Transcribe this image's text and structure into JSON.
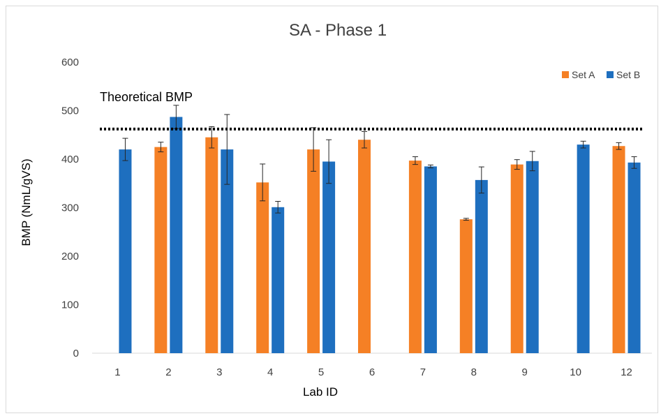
{
  "chart_data": {
    "type": "bar",
    "title": "SA - Phase 1",
    "xlabel": "Lab ID",
    "ylabel": "BMP (NmL/gVS)",
    "ylim": [
      0,
      600
    ],
    "yticks": [
      0,
      100,
      200,
      300,
      400,
      500,
      600
    ],
    "grid": false,
    "legend_position": "top-right",
    "categories": [
      "1",
      "2",
      "3",
      "4",
      "5",
      "6",
      "7",
      "8",
      "9",
      "10",
      "12"
    ],
    "series": [
      {
        "name": "Set A",
        "color": "#F58025",
        "values": [
          null,
          425,
          445,
          352,
          420,
          440,
          397,
          276,
          389,
          null,
          427
        ],
        "errors": [
          null,
          10,
          22,
          38,
          45,
          17,
          8,
          2,
          10,
          null,
          7
        ]
      },
      {
        "name": "Set B",
        "color": "#1E6FBF",
        "values": [
          420,
          487,
          420,
          301,
          395,
          null,
          385,
          357,
          396,
          430,
          393
        ],
        "errors": [
          23,
          24,
          72,
          12,
          45,
          null,
          3,
          27,
          20,
          7,
          12
        ]
      }
    ],
    "reference_line": {
      "label": "Theoretical BMP",
      "value": 462,
      "style": "dotted",
      "color": "#000000"
    }
  }
}
